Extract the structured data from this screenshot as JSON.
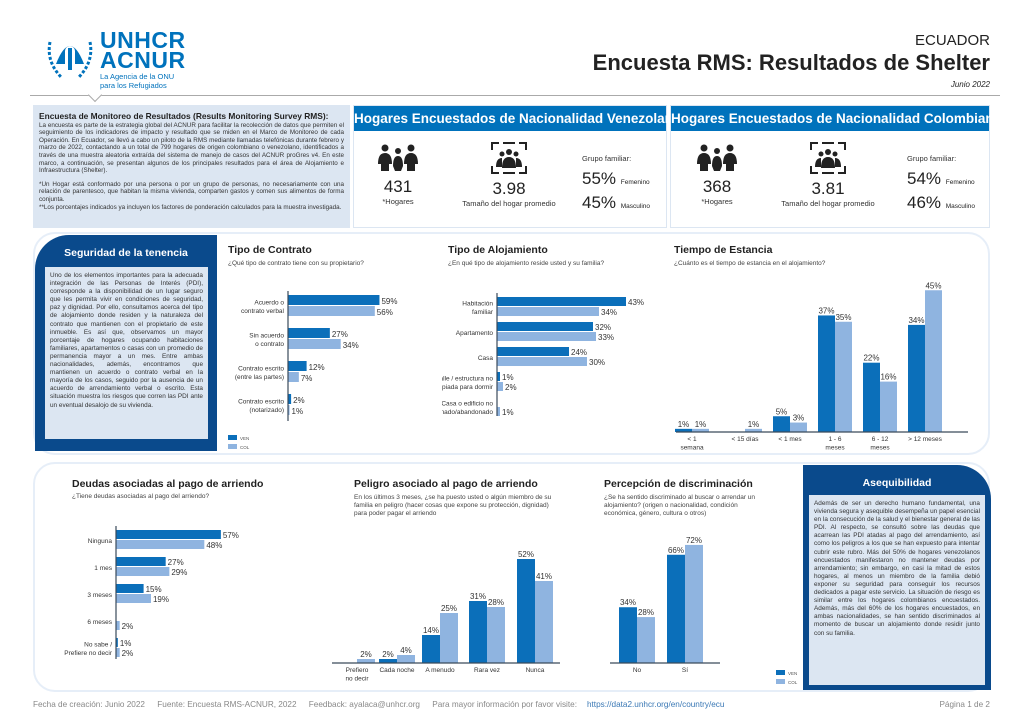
{
  "logo": {
    "line1": "UNHCR",
    "line2": "ACNUR",
    "tag1": "La Agencia de la ONU",
    "tag2": "para los Refugiados"
  },
  "header": {
    "country": "ECUADOR",
    "title": "Encuesta RMS: Resultados de Shelter",
    "date": "Junio 2022"
  },
  "intro": {
    "heading": "Encuesta de Monitoreo de Resultados (Results Monitoring Survey RMS):",
    "body": "La encuesta es parte de la estrategia global del ACNUR para facilitar la recolección de datos que permiten el seguimiento de los indicadores de impacto y resultado que se miden en el Marco de Monitoreo de cada Operación. En Ecuador, se llevó a cabo un piloto de la RMS mediante llamadas telefónicas durante febrero y marzo de 2022, contactando a un total de 799 hogares de origen colombiano o venezolano, identificados a través de una muestra aleatoria extraída del sistema de manejo de casos del ACNUR proGres v4. En este marco, a continuación, se presentan algunos de los principales resultados para el área de Alojamiento e Infraestructura (Shelter).",
    "note1": "*Un Hogar está conformado por una persona o por un grupo de personas, no necesariamente con una relación de parentesco, que habitan la misma vivienda, comparten gastos y comen sus alimentos de forma conjunta.",
    "note2": "**Los porcentajes indicados ya incluyen los factores de ponderación calculados para la muestra investigada."
  },
  "panels": [
    {
      "title": "Hogares Encuestados de Nacionalidad Venezolana",
      "households": "431",
      "households_label": "*Hogares",
      "size": "3.98",
      "size_label": "Tamaño del hogar promedio",
      "group_label": "Grupo familiar:",
      "female_pct": "55%",
      "female_label": "Femenino",
      "male_pct": "45%",
      "male_label": "Masculino"
    },
    {
      "title": "Hogares Encuestados de Nacionalidad Colombiana",
      "households": "368",
      "households_label": "*Hogares",
      "size": "3.81",
      "size_label": "Tamaño del hogar promedio",
      "group_label": "Grupo familiar:",
      "female_pct": "54%",
      "female_label": "Femenino",
      "male_pct": "46%",
      "male_label": "Masculino"
    }
  ],
  "tenure": {
    "title": "Seguridad de la tenencia",
    "body": "Uno de los elementos importantes para la adecuada integración de las Personas de Interés (PDI), corresponde a la disponibilidad de un lugar seguro que les permita vivir en condiciones de seguridad, paz y dignidad. Por ello, consultamos acerca del tipo de alojamiento donde residen y la naturaleza del contrato que mantienen con el propietario de este inmueble. Es así que, observamos un mayor porcentaje de hogares ocupando habitaciones familiares, apartamentos o casas con un promedio de permanencia mayor a un mes. Entre ambas nacionalidades, además, encontramos que mantienen un acuerdo o contrato verbal en la mayoría de los casos, seguido por la ausencia de un acuerdo de arrendamiento verbal o escrito. Esta situación muestra los riesgos que corren las PDI ante un eventual desalojo de su vivienda."
  },
  "afford": {
    "title": "Asequibilidad",
    "body": "Además de ser un derecho humano fundamental, una vivienda segura y asequible desempeña un papel esencial en la consecución de la salud y el bienestar general de las PDI. Al respecto, se consultó sobre las deudas que acarrean las PDI atadas al pago del arrendamiento, así como los peligros a los que se han expuesto para intentar cubrir este rubro. Más del 50% de hogares venezolanos encuestados manifestaron no mantener deudas por arrendamiento; sin embargo, en casi la mitad de estos hogares, al menos un miembro de la familia debió exponer su seguridad para conseguir los recursos dedicados a pagar este servicio. La situación de riesgo es similar entre los hogares colombianos encuestados. Además, más del 60% de los hogares encuestados, en ambas nacionalidades, se han sentido discriminados al momento de buscar un alojamiento donde residir junto con su familia."
  },
  "colors": {
    "ven": "#0B6FBA",
    "col": "#8FB4E0",
    "dark": "#0A4A8C"
  },
  "chart_data": [
    {
      "id": "contrato",
      "type": "bar",
      "orientation": "horizontal",
      "title": "Tipo de Contrato",
      "subtitle": "¿Qué tipo de contrato tiene con su propietario?",
      "categories": [
        [
          "Acuerdo o",
          "contrato verbal"
        ],
        [
          "Sin acuerdo",
          "o contrato"
        ],
        [
          "Contrato escrito",
          "(entre las partes)"
        ],
        [
          "Contrato escrito",
          "(notarizado)"
        ]
      ],
      "series": [
        {
          "name": "VEN",
          "values": [
            59,
            27,
            12,
            2
          ]
        },
        {
          "name": "COL",
          "values": [
            56,
            34,
            7,
            1
          ]
        }
      ],
      "legend": [
        "VEN",
        "COL"
      ]
    },
    {
      "id": "alojamiento",
      "type": "bar",
      "orientation": "horizontal",
      "title": "Tipo de Alojamiento",
      "subtitle": "¿En qué tipo de alojamiento reside usted y su familia?",
      "categories": [
        [
          "Habitación",
          "familiar"
        ],
        [
          "Apartamento"
        ],
        [
          "Casa"
        ],
        [
          "En la calle / estructura no",
          "apropiada para dormir"
        ],
        [
          "Casa o edificio no",
          "terminado/abandonado"
        ]
      ],
      "series": [
        {
          "name": "VEN",
          "values": [
            43,
            32,
            24,
            1,
            null
          ]
        },
        {
          "name": "COL",
          "values": [
            34,
            33,
            30,
            2,
            1
          ]
        }
      ]
    },
    {
      "id": "tiempo",
      "type": "bar",
      "orientation": "vertical",
      "title": "Tiempo de Estancia",
      "subtitle": "¿Cuánto es el tiempo de estancia en el alojamiento?",
      "categories": [
        [
          "< 1",
          "semana"
        ],
        [
          "< 15 días"
        ],
        [
          "< 1 mes"
        ],
        [
          "1 - 6",
          "meses"
        ],
        [
          "6 - 12",
          "meses"
        ],
        [
          "> 12 meses"
        ]
      ],
      "series": [
        {
          "name": "VEN",
          "values": [
            1,
            null,
            5,
            37,
            22,
            34
          ]
        },
        {
          "name": "COL",
          "values": [
            1,
            1,
            3,
            35,
            16,
            45
          ]
        }
      ]
    },
    {
      "id": "deudas",
      "type": "bar",
      "orientation": "horizontal",
      "title": "Deudas asociadas al pago de arriendo",
      "subtitle": "¿Tiene deudas asociadas al pago del arriendo?",
      "categories": [
        [
          "Ninguna"
        ],
        [
          "1 mes"
        ],
        [
          "3 meses"
        ],
        [
          "6 meses"
        ],
        [
          "No sabe /",
          "Prefiere no decir"
        ]
      ],
      "series": [
        {
          "name": "VEN",
          "values": [
            57,
            27,
            15,
            null,
            1
          ]
        },
        {
          "name": "COL",
          "values": [
            48,
            29,
            19,
            2,
            2
          ]
        }
      ]
    },
    {
      "id": "peligro",
      "type": "bar",
      "orientation": "vertical",
      "title": "Peligro asociado al pago de arriendo",
      "subtitle": "En los últimos 3 meses, ¿se ha puesto usted o algún miembro de su familia en peligro (hacer cosas que expone su protección, dignidad) para poder pagar el arriendo",
      "categories": [
        [
          "Prefiero",
          "no decir"
        ],
        [
          "Cada noche"
        ],
        [
          "A menudo"
        ],
        [
          "Rara vez"
        ],
        [
          "Nunca"
        ]
      ],
      "series": [
        {
          "name": "VEN",
          "values": [
            null,
            2,
            14,
            31,
            52
          ]
        },
        {
          "name": "COL",
          "values": [
            2,
            4,
            25,
            28,
            41
          ]
        }
      ]
    },
    {
      "id": "percepcion",
      "type": "bar",
      "orientation": "vertical",
      "title": "Percepción de discriminación",
      "subtitle": "¿Se ha sentido discriminado al buscar o arrendar un alojamiento? (origen o nacionalidad, condición económica, género, cultura o otros)",
      "categories": [
        [
          "No"
        ],
        [
          "Sí"
        ]
      ],
      "series": [
        {
          "name": "VEN",
          "values": [
            34,
            66
          ]
        },
        {
          "name": "COL",
          "values": [
            28,
            72
          ]
        }
      ],
      "legend": [
        "VEN",
        "COL"
      ]
    }
  ],
  "footer": {
    "created": "Fecha de creación: Junio 2022",
    "source": "Fuente: Encuesta RMS-ACNUR, 2022",
    "feedback": "Feedback: ayalaca@unhcr.org",
    "more": "Para mayor información por favor visite:",
    "link": "https://data2.unhcr.org/en/country/ecu",
    "page": "Página 1 de 2"
  }
}
